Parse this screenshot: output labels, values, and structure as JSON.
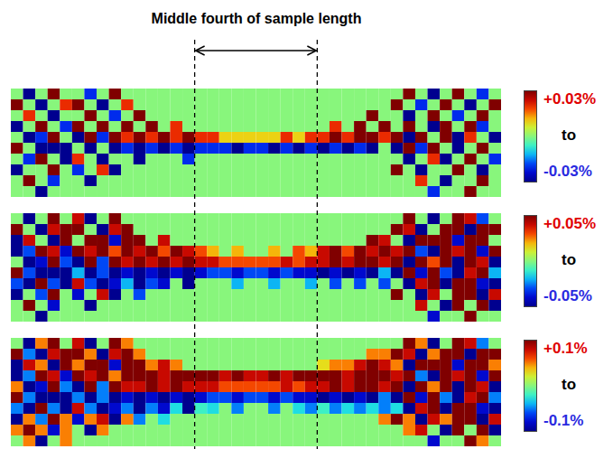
{
  "annotation": {
    "text": "Middle fourth of sample length",
    "x_range": [
      0.375,
      0.625
    ]
  },
  "chart_data": [
    {
      "type": "heatmap",
      "xlim": [
        0,
        1
      ],
      "tick_labels": false,
      "colorbar": {
        "range": [
          -0.03,
          0.03
        ],
        "ticks": [
          {
            "value": 0.03,
            "label": "+0.03%"
          },
          {
            "value": -0.03,
            "label": "-0.03%"
          }
        ],
        "between": "to"
      },
      "cells": [
        [
          0,
          -0.03,
          0,
          0.03,
          0,
          0,
          -0.02,
          0,
          0.03,
          0,
          0,
          0,
          0,
          0,
          0,
          0,
          0,
          0,
          0,
          0,
          0,
          0,
          0,
          0,
          0,
          0,
          0,
          0,
          0,
          0,
          0,
          0,
          0.03,
          0,
          -0.03,
          0,
          0.03,
          0,
          -0.02,
          0
        ],
        [
          0.03,
          0,
          -0.03,
          0,
          0.02,
          0.03,
          0,
          -0.03,
          0,
          0.02,
          0,
          0,
          0,
          0,
          0,
          0,
          0,
          0,
          0,
          0,
          0,
          0,
          0,
          0,
          0,
          0,
          0,
          0,
          0,
          0,
          0,
          0.03,
          0,
          -0.02,
          0,
          0.03,
          0,
          -0.03,
          0,
          0.03
        ],
        [
          0,
          0.02,
          0,
          -0.03,
          0,
          0,
          0.03,
          0,
          -0.02,
          0,
          0.03,
          0,
          0,
          0,
          0,
          0,
          0,
          0,
          0,
          0,
          0,
          0,
          0,
          0,
          0,
          0,
          0,
          0,
          0,
          0.03,
          0,
          0,
          -0.03,
          0,
          0.03,
          0,
          -0.02,
          0,
          0.03,
          0
        ],
        [
          -0.03,
          0,
          0.03,
          0,
          -0.02,
          0.03,
          0,
          0.03,
          0,
          0.03,
          0,
          0.03,
          0,
          0.02,
          0,
          0,
          0,
          0,
          0,
          0,
          0,
          0,
          0,
          0,
          0,
          0,
          0.02,
          0,
          0.03,
          0,
          0.03,
          0,
          0.03,
          0,
          -0.03,
          0.03,
          0,
          0.03,
          -0.02,
          0
        ],
        [
          0,
          -0.03,
          -0.02,
          0.03,
          0,
          -0.03,
          0.03,
          -0.02,
          0.03,
          0.02,
          0.03,
          0.02,
          0.03,
          0.02,
          0.03,
          0.02,
          0.02,
          0.01,
          0.01,
          0.01,
          0.01,
          0.01,
          0.02,
          0.01,
          0.02,
          0.02,
          0.03,
          0.02,
          0.03,
          0.03,
          0.02,
          0.03,
          -0.03,
          0.03,
          0,
          0.03,
          -0.03,
          0.02,
          0,
          -0.03
        ],
        [
          0.03,
          0,
          -0.03,
          -0.03,
          -0.03,
          0,
          -0.03,
          0,
          -0.03,
          -0.02,
          -0.03,
          -0.02,
          -0.03,
          -0.02,
          -0.03,
          -0.02,
          -0.02,
          -0.02,
          -0.03,
          -0.02,
          -0.02,
          -0.03,
          -0.02,
          -0.03,
          -0.02,
          -0.03,
          -0.02,
          -0.03,
          -0.02,
          -0.03,
          0,
          -0.03,
          0.03,
          -0.02,
          0.03,
          0,
          -0.03,
          0,
          0.03,
          0
        ],
        [
          0,
          -0.02,
          0.03,
          0,
          -0.03,
          0.02,
          0,
          -0.03,
          0,
          0,
          -0.03,
          0,
          0,
          0,
          -0.02,
          0,
          0,
          0,
          0,
          0,
          0,
          0,
          0,
          0,
          0,
          0,
          0,
          0,
          0,
          0,
          0,
          0,
          -0.03,
          0,
          0.02,
          -0.03,
          0,
          0.03,
          0,
          -0.02
        ],
        [
          -0.03,
          0,
          0,
          0.03,
          0,
          -0.02,
          0,
          0.02,
          -0.03,
          0,
          0,
          0,
          0,
          0,
          0,
          0,
          0,
          0,
          0,
          0,
          0,
          0,
          0,
          0,
          0,
          0,
          0,
          0,
          0,
          0,
          0,
          0.03,
          0,
          -0.03,
          0,
          0,
          0.03,
          0,
          -0.03,
          0
        ],
        [
          0,
          0.03,
          0,
          -0.02,
          0,
          0,
          -0.03,
          0,
          0,
          0,
          0,
          0,
          0,
          0,
          0,
          0,
          0,
          0,
          0,
          0,
          0,
          0,
          0,
          0,
          0,
          0,
          0,
          0,
          0,
          0,
          0,
          0,
          0,
          0.02,
          0,
          -0.03,
          0,
          0,
          0.03,
          0
        ],
        [
          0,
          0,
          -0.03,
          0,
          0,
          0,
          0,
          0,
          0,
          0,
          0,
          0,
          0,
          0,
          0,
          0,
          0,
          0,
          0,
          0,
          0,
          0,
          0,
          0,
          0,
          0,
          0,
          0,
          0,
          0,
          0,
          0,
          0,
          0,
          -0.02,
          0,
          0,
          0.03,
          0,
          0
        ]
      ]
    },
    {
      "type": "heatmap",
      "xlim": [
        0,
        1
      ],
      "tick_labels": false,
      "colorbar": {
        "range": [
          -0.05,
          0.05
        ],
        "ticks": [
          {
            "value": 0.05,
            "label": "+0.05%"
          },
          {
            "value": -0.05,
            "label": "-0.05%"
          }
        ],
        "between": "to"
      },
      "cells": [
        [
          0,
          -0.05,
          0,
          0.05,
          0,
          0.04,
          -0.05,
          0,
          0.05,
          0,
          0,
          0,
          0,
          0,
          0,
          0,
          0,
          0,
          0,
          0,
          0,
          0,
          0,
          0,
          0,
          0,
          0,
          0,
          0,
          0,
          0,
          0,
          0.05,
          0,
          -0.05,
          0,
          0.05,
          0.04,
          -0.03,
          0
        ],
        [
          0.05,
          0,
          -0.05,
          0.04,
          0.05,
          0.05,
          0,
          -0.05,
          0.04,
          0.05,
          0,
          0,
          0,
          0,
          0,
          0,
          0,
          0,
          0,
          0,
          0,
          0,
          0,
          0,
          0,
          0,
          0,
          0,
          0,
          0,
          0,
          0.05,
          0.04,
          -0.05,
          0,
          0.05,
          0.05,
          -0.05,
          0.05,
          0.05
        ],
        [
          -0.05,
          0.04,
          0,
          -0.05,
          0.05,
          0,
          0.05,
          0.05,
          -0.04,
          0.05,
          0.05,
          0,
          0.04,
          0,
          0,
          0,
          0,
          0,
          0,
          0,
          0,
          0,
          0,
          0,
          0,
          0,
          0,
          0,
          0,
          0.05,
          0.04,
          0,
          -0.05,
          0.05,
          0.05,
          0.05,
          -0.04,
          0.05,
          0.05,
          0
        ],
        [
          -0.05,
          -0.03,
          0.05,
          0.04,
          -0.04,
          0.05,
          0.04,
          0.05,
          0.03,
          0.05,
          0.04,
          0.05,
          0.03,
          0.05,
          0.04,
          0.03,
          0.02,
          0,
          0.02,
          0,
          0,
          0.02,
          0,
          0.03,
          0.02,
          0.04,
          0.05,
          0.03,
          0.05,
          0.04,
          0.05,
          0.04,
          0.05,
          -0.03,
          -0.05,
          0.05,
          0.04,
          0.05,
          -0.04,
          0.05
        ],
        [
          0,
          -0.05,
          -0.04,
          0.05,
          -0.03,
          -0.05,
          0.05,
          -0.03,
          0.05,
          0.04,
          0.05,
          0.04,
          0.05,
          0.04,
          0.05,
          0.04,
          0.04,
          0.03,
          0.03,
          0.03,
          0.03,
          0.03,
          0.04,
          0.03,
          0.04,
          0.04,
          0.05,
          0.04,
          0.05,
          0.05,
          0.04,
          0.05,
          -0.05,
          0.05,
          0.03,
          0.05,
          -0.05,
          0.05,
          0.04,
          -0.05
        ],
        [
          0.05,
          -0.03,
          -0.05,
          -0.05,
          -0.05,
          -0.02,
          -0.05,
          -0.03,
          -0.05,
          -0.04,
          -0.05,
          -0.04,
          -0.05,
          -0.04,
          -0.05,
          -0.04,
          -0.03,
          -0.03,
          -0.04,
          -0.03,
          -0.03,
          -0.04,
          -0.03,
          -0.04,
          -0.04,
          -0.05,
          -0.04,
          -0.05,
          -0.04,
          -0.05,
          -0.02,
          -0.05,
          0.05,
          -0.04,
          0.05,
          -0.03,
          -0.05,
          0.04,
          0.05,
          -0.02
        ],
        [
          -0.03,
          -0.05,
          0.05,
          -0.03,
          -0.05,
          0.04,
          -0.03,
          -0.05,
          -0.04,
          -0.02,
          -0.05,
          -0.03,
          -0.04,
          0,
          -0.05,
          0,
          0,
          0,
          -0.02,
          0,
          0,
          -0.02,
          0,
          0,
          -0.02,
          0,
          -0.03,
          0,
          -0.03,
          0,
          -0.03,
          0,
          -0.05,
          0.04,
          0.05,
          -0.05,
          0.05,
          0.05,
          -0.04,
          -0.05
        ],
        [
          -0.05,
          0,
          -0.03,
          0.05,
          0,
          -0.04,
          0,
          0.04,
          -0.05,
          0,
          -0.03,
          0,
          0,
          0,
          0,
          0,
          0,
          0,
          0,
          0,
          0,
          0,
          0,
          0,
          0,
          0,
          0,
          0,
          0,
          0,
          0,
          0.05,
          0,
          -0.05,
          0.04,
          0,
          0.05,
          0.05,
          -0.05,
          0.04
        ],
        [
          0,
          0.05,
          0,
          -0.04,
          0,
          0,
          -0.05,
          0,
          0,
          0,
          0,
          0,
          0,
          0,
          0,
          0,
          0,
          0,
          0,
          0,
          0,
          0,
          0,
          0,
          0,
          0,
          0,
          0,
          0,
          0,
          0,
          0,
          0,
          0.04,
          0,
          -0.05,
          0.05,
          0,
          0.05,
          -0.05
        ],
        [
          0,
          0,
          -0.05,
          0,
          0,
          0,
          0,
          0,
          0,
          0,
          0,
          0,
          0,
          0,
          0,
          0,
          0,
          0,
          0,
          0,
          0,
          0,
          0,
          0,
          0,
          0,
          0,
          0,
          0,
          0,
          0,
          0,
          0,
          0,
          -0.04,
          0,
          0,
          0.05,
          0,
          0
        ]
      ]
    },
    {
      "type": "heatmap",
      "xlim": [
        0,
        1
      ],
      "tick_labels": false,
      "colorbar": {
        "range": [
          -0.1,
          0.1
        ],
        "ticks": [
          {
            "value": 0.1,
            "label": "+0.1%"
          },
          {
            "value": -0.1,
            "label": "-0.1%"
          }
        ],
        "between": "to"
      },
      "cells": [
        [
          0,
          -0.1,
          0.05,
          0.1,
          0,
          0.08,
          -0.1,
          0,
          0.1,
          0.05,
          0,
          0,
          0,
          0,
          0,
          0,
          0,
          0,
          0,
          0,
          0,
          0,
          0,
          0,
          0,
          0,
          0,
          0,
          0,
          0,
          0,
          0,
          0.1,
          0.05,
          -0.1,
          0,
          0.1,
          0.08,
          -0.05,
          0
        ],
        [
          0.1,
          -0.05,
          -0.1,
          0.08,
          0.1,
          0.1,
          0.05,
          -0.1,
          0.08,
          0.1,
          0.05,
          0,
          0,
          0,
          0,
          0,
          0,
          0,
          0,
          0,
          0,
          0,
          0,
          0,
          0,
          0,
          0,
          0,
          0,
          0.05,
          0.05,
          0.1,
          0.08,
          -0.1,
          0.05,
          0.1,
          0.1,
          -0.1,
          0.1,
          0.1
        ],
        [
          -0.1,
          0.08,
          0.05,
          -0.1,
          0.1,
          0.05,
          0.1,
          0.1,
          -0.08,
          0.1,
          0.1,
          0.05,
          0.08,
          0.05,
          0,
          0,
          0,
          0,
          0,
          0,
          0,
          0,
          0,
          0,
          0,
          0.03,
          0.05,
          0.05,
          0.08,
          0.1,
          0.08,
          0.05,
          -0.1,
          0.1,
          0.1,
          0.1,
          -0.08,
          0.1,
          0.1,
          0.05
        ],
        [
          -0.1,
          -0.05,
          0.1,
          0.08,
          -0.08,
          0.1,
          0.08,
          0.1,
          0.05,
          0.1,
          0.1,
          0.1,
          0.08,
          0.1,
          0.1,
          0.1,
          0.1,
          0.08,
          0.1,
          0.08,
          0.08,
          0.1,
          0.08,
          0.1,
          0.1,
          0.1,
          0.1,
          0.08,
          0.1,
          0.1,
          0.1,
          0.08,
          0.1,
          -0.05,
          -0.1,
          0.1,
          0.08,
          0.1,
          -0.08,
          0.1
        ],
        [
          0.05,
          -0.1,
          -0.08,
          0.1,
          -0.05,
          -0.1,
          0.1,
          -0.05,
          0.1,
          0.08,
          0.08,
          0.1,
          0.08,
          0.1,
          0.08,
          0.08,
          0.08,
          0.06,
          0.06,
          0.06,
          0.06,
          0.06,
          0.08,
          0.06,
          0.08,
          0.08,
          0.1,
          0.08,
          0.1,
          0.1,
          0.08,
          0.1,
          -0.1,
          0.1,
          0.05,
          0.1,
          -0.1,
          0.1,
          0.08,
          -0.1
        ],
        [
          0.1,
          -0.05,
          -0.1,
          -0.1,
          -0.1,
          -0.05,
          -0.1,
          -0.05,
          -0.1,
          -0.08,
          -0.1,
          -0.08,
          -0.1,
          -0.08,
          -0.1,
          -0.08,
          -0.06,
          -0.06,
          -0.08,
          -0.06,
          -0.06,
          -0.08,
          -0.06,
          -0.08,
          -0.08,
          -0.1,
          -0.08,
          -0.1,
          -0.08,
          -0.1,
          -0.05,
          -0.1,
          0.1,
          -0.08,
          0.1,
          -0.05,
          -0.1,
          0.08,
          0.1,
          -0.05
        ],
        [
          -0.05,
          -0.1,
          0.1,
          -0.05,
          -0.1,
          0.08,
          -0.05,
          -0.1,
          -0.08,
          -0.05,
          -0.1,
          -0.05,
          -0.08,
          -0.03,
          -0.1,
          -0.02,
          -0.03,
          0,
          -0.05,
          0,
          0,
          -0.05,
          0,
          -0.03,
          -0.05,
          -0.02,
          -0.05,
          -0.03,
          -0.05,
          -0.03,
          -0.05,
          -0.03,
          -0.1,
          0.08,
          0.1,
          -0.1,
          0.1,
          0.1,
          -0.08,
          -0.1
        ],
        [
          -0.1,
          0.05,
          -0.05,
          0.1,
          0.05,
          -0.08,
          0.05,
          0.08,
          -0.1,
          0.05,
          -0.05,
          0,
          -0.03,
          0,
          0,
          0,
          0,
          0,
          0,
          0,
          0,
          0,
          0,
          0,
          0,
          0,
          0,
          0,
          0,
          0,
          0.05,
          0.1,
          0.05,
          -0.1,
          0.08,
          0.05,
          0.1,
          0.1,
          -0.1,
          0.08
        ],
        [
          0.05,
          0.1,
          0.05,
          -0.08,
          0.05,
          0,
          -0.1,
          0.05,
          0,
          0,
          0,
          0,
          0,
          0,
          0,
          0,
          0,
          0,
          0,
          0,
          0,
          0,
          0,
          0,
          0,
          0,
          0,
          0,
          0,
          0,
          0,
          0,
          0.05,
          0.08,
          0,
          -0.1,
          0.1,
          0,
          0.1,
          -0.1
        ],
        [
          0,
          0.05,
          -0.1,
          0,
          0.05,
          0,
          0,
          0,
          0,
          0,
          0,
          0,
          0,
          0,
          0,
          0,
          0,
          0,
          0,
          0,
          0,
          0,
          0,
          0,
          0,
          0,
          0,
          0,
          0,
          0,
          0,
          0,
          0,
          0,
          -0.08,
          0,
          0,
          0.1,
          0.05,
          0
        ]
      ]
    }
  ]
}
